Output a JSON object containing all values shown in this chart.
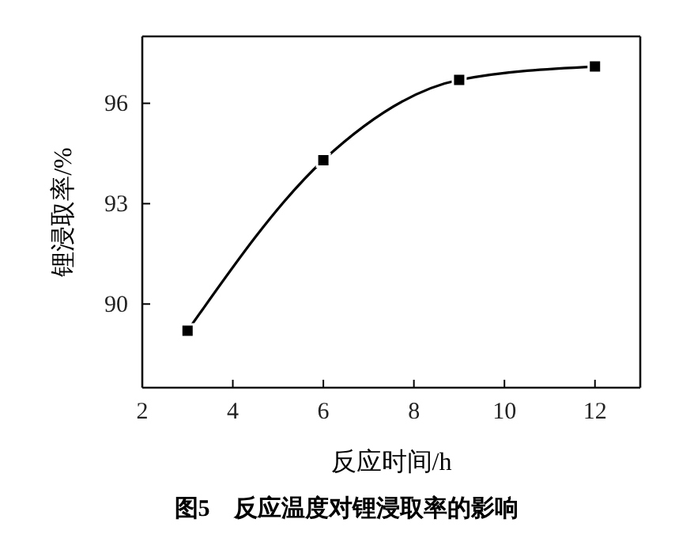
{
  "chart_data": {
    "type": "line",
    "title": "图5　反应温度对锂浸取率的影响",
    "xlabel": "反应时间/h",
    "ylabel": "锂浸取率/%",
    "x": [
      3,
      6,
      9,
      12
    ],
    "series": [
      {
        "color": "#000000",
        "values": [
          89.2,
          94.3,
          96.7,
          97.1
        ]
      }
    ],
    "xlim": [
      2,
      13
    ],
    "xticks": [
      2,
      4,
      6,
      8,
      10,
      12
    ],
    "ylim": [
      87.5,
      98
    ],
    "yticks": [
      90,
      93,
      96
    ],
    "marker": "square",
    "line_style": "solid",
    "grid": false
  }
}
